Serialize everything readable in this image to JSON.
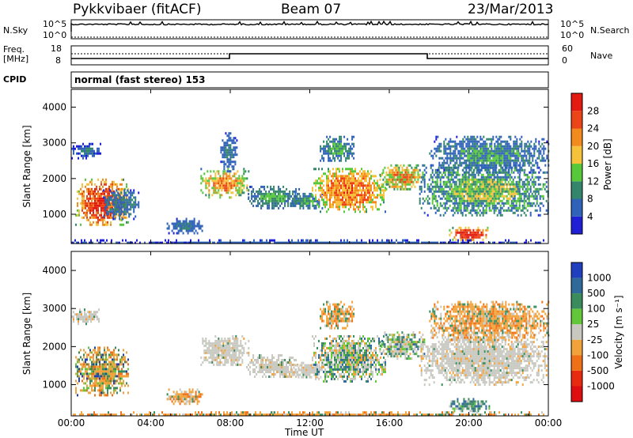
{
  "header": {
    "station": "Pykkvibaer (fitACF)",
    "beam": "Beam 07",
    "date": "23/Mar/2013"
  },
  "noise_panel": {
    "left_label": "N.Sky",
    "right_label": "N.Search",
    "left_ticks": [
      "10^5",
      "10^0"
    ],
    "right_ticks": [
      "10^5",
      "10^0"
    ]
  },
  "freq_panel": {
    "left_label_1": "Freq.",
    "left_label_2": "[MHz]",
    "right_label": "Nave",
    "left_ticks": [
      "18",
      "8"
    ],
    "right_ticks": [
      "60",
      "0"
    ]
  },
  "cpid_panel": {
    "label": "CPID",
    "text": "normal (fast stereo) 153"
  },
  "x_axis": {
    "label": "Time UT",
    "ticks": [
      "00:00",
      "04:00",
      "08:00",
      "12:00",
      "16:00",
      "20:00",
      "00:00"
    ]
  },
  "chart_data": [
    {
      "type": "heatmap",
      "title": "",
      "xlabel": "Time UT",
      "ylabel": "Slant Range [km]",
      "x_ticks": [
        "00:00",
        "04:00",
        "08:00",
        "12:00",
        "16:00",
        "20:00",
        "00:00"
      ],
      "y_ticks": [
        1000,
        2000,
        3000,
        4000
      ],
      "xlim_hours": [
        0,
        24
      ],
      "ylim_km": [
        180,
        4500
      ],
      "colorbar": {
        "label": "Power [dB]",
        "ticks": [
          "4",
          "8",
          "12",
          "16",
          "20",
          "24",
          "28"
        ],
        "colors": [
          "#1f1fd6",
          "#2f62b8",
          "#33856c",
          "#56c83a",
          "#f5c23a",
          "#f28a1e",
          "#ec4416",
          "#e21a10"
        ],
        "range": [
          0,
          30
        ]
      }
    },
    {
      "type": "heatmap",
      "title": "",
      "xlabel": "Time UT",
      "ylabel": "Slant Range [km]",
      "x_ticks": [
        "00:00",
        "04:00",
        "08:00",
        "12:00",
        "16:00",
        "20:00",
        "00:00"
      ],
      "y_ticks": [
        1000,
        2000,
        3000,
        4000
      ],
      "xlim_hours": [
        0,
        24
      ],
      "ylim_km": [
        180,
        4500
      ],
      "colorbar": {
        "label": "Velocity [m s⁻¹]",
        "ticks": [
          "1000",
          "500",
          "100",
          "25",
          "-25",
          "-100",
          "-500",
          "-1000"
        ],
        "colors": [
          "#1f3fbf",
          "#2f6a9a",
          "#3a8c5c",
          "#62c83a",
          "#c8c8c0",
          "#f2a23a",
          "#f07018",
          "#e82a10",
          "#e00d10"
        ],
        "range": [
          -1000,
          1000
        ]
      }
    }
  ]
}
